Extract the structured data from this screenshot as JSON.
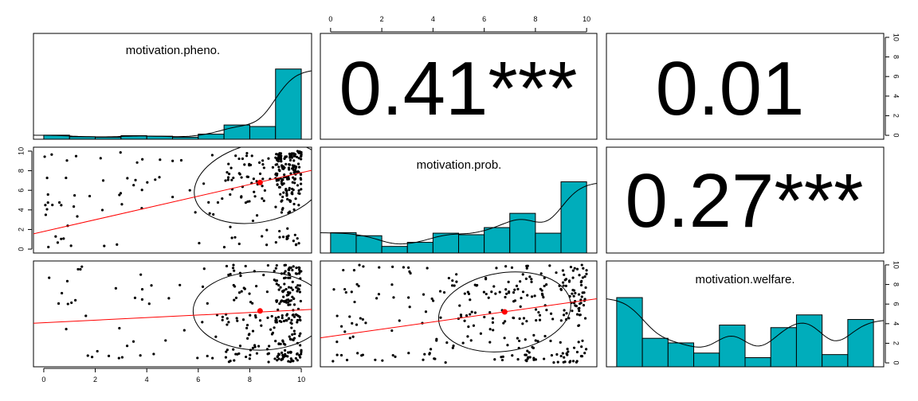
{
  "chart_data": {
    "type": "scatter",
    "subtype": "pairs-panels",
    "variables": [
      "motivation.pheno.",
      "motivation.prob.",
      "motivation.welfare."
    ],
    "axis_range": [
      0,
      10
    ],
    "ticks": [
      "0",
      "2",
      "4",
      "6",
      "8",
      "10"
    ],
    "colors": {
      "bar_fill": "#00adbb",
      "regression_line": "#ff0000",
      "mean_point": "#ff0000",
      "points": "#000000",
      "density_curve": "#000000"
    },
    "histograms": [
      {
        "variable": "motivation.pheno.",
        "bins": [
          0,
          1,
          2,
          3,
          4,
          5,
          6,
          7,
          8,
          9,
          10
        ],
        "heights": [
          0.4,
          0.25,
          0.2,
          0.35,
          0.3,
          0.2,
          0.5,
          1.4,
          1.25,
          6.9
        ]
      },
      {
        "variable": "motivation.prob.",
        "bins": [
          0,
          1,
          2,
          3,
          4,
          5,
          6,
          7,
          8,
          9,
          10
        ],
        "heights": [
          2.0,
          1.7,
          0.65,
          1.05,
          1.95,
          1.8,
          2.5,
          3.9,
          1.95,
          7.0
        ]
      },
      {
        "variable": "motivation.welfare.",
        "bins": [
          0,
          1,
          2,
          3,
          4,
          5,
          6,
          7,
          8,
          9,
          10
        ],
        "heights": [
          6.8,
          2.8,
          2.35,
          1.35,
          4.1,
          0.9,
          3.85,
          5.1,
          1.2,
          4.65
        ]
      }
    ],
    "correlations": [
      {
        "pair": [
          "motivation.pheno.",
          "motivation.prob."
        ],
        "label": "0.41***",
        "r": 0.41
      },
      {
        "pair": [
          "motivation.pheno.",
          "motivation.welfare."
        ],
        "label": "0.01",
        "r": 0.01
      },
      {
        "pair": [
          "motivation.prob.",
          "motivation.welfare."
        ],
        "label": "0.27***",
        "r": 0.27
      }
    ],
    "scatters": [
      {
        "x": "motivation.pheno.",
        "y": "motivation.prob.",
        "mean": [
          8.4,
          6.8
        ],
        "fit_line": [
          [
            0,
            1.8
          ],
          [
            10,
            7.8
          ]
        ]
      },
      {
        "x": "motivation.pheno.",
        "y": "motivation.welfare.",
        "mean": [
          8.4,
          5.3
        ],
        "fit_line": [
          [
            0,
            4.1
          ],
          [
            10,
            5.4
          ]
        ]
      },
      {
        "x": "motivation.prob.",
        "y": "motivation.welfare.",
        "mean": [
          6.8,
          5.2
        ],
        "fit_line": [
          [
            0,
            2.7
          ],
          [
            10,
            6.4
          ]
        ]
      }
    ]
  }
}
